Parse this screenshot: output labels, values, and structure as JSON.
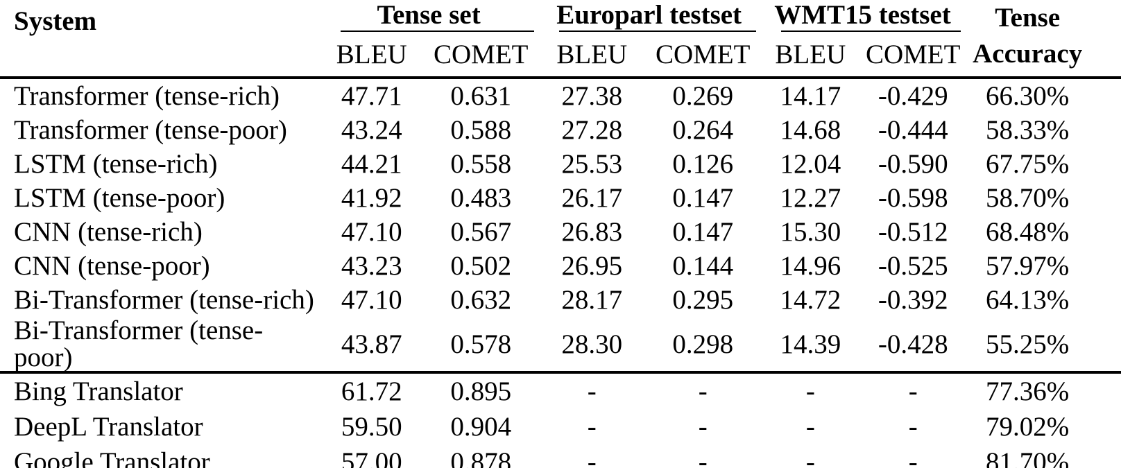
{
  "colors": {
    "text": "#000000",
    "background": "#ffffff",
    "rule": "#000000"
  },
  "table": {
    "header": {
      "system": "System",
      "groups": [
        {
          "label": "Tense set"
        },
        {
          "label": "Europarl testset"
        },
        {
          "label": "WMT15 testset"
        }
      ],
      "subheaders": [
        "BLEU",
        "COMET",
        "BLEU",
        "COMET",
        "BLEU",
        "COMET"
      ],
      "accuracy": {
        "line1": "Tense",
        "line2": "Accuracy"
      }
    },
    "sections": [
      {
        "rows": [
          {
            "system": "Transformer (tense-rich)",
            "values": [
              "47.71",
              "0.631",
              "27.38",
              "0.269",
              "14.17",
              "-0.429",
              "66.30%"
            ]
          },
          {
            "system": "Transformer (tense-poor)",
            "values": [
              "43.24",
              "0.588",
              "27.28",
              "0.264",
              "14.68",
              "-0.444",
              "58.33%"
            ]
          },
          {
            "system": "LSTM (tense-rich)",
            "values": [
              "44.21",
              "0.558",
              "25.53",
              "0.126",
              "12.04",
              "-0.590",
              "67.75%"
            ]
          },
          {
            "system": "LSTM (tense-poor)",
            "values": [
              "41.92",
              "0.483",
              "26.17",
              "0.147",
              "12.27",
              "-0.598",
              "58.70%"
            ]
          },
          {
            "system": "CNN (tense-rich)",
            "values": [
              "47.10",
              "0.567",
              "26.83",
              "0.147",
              "15.30",
              "-0.512",
              "68.48%"
            ]
          },
          {
            "system": "CNN (tense-poor)",
            "values": [
              "43.23",
              "0.502",
              "26.95",
              "0.144",
              "14.96",
              "-0.525",
              "57.97%"
            ]
          },
          {
            "system": "Bi-Transformer (tense-rich)",
            "values": [
              "47.10",
              "0.632",
              "28.17",
              "0.295",
              "14.72",
              "-0.392",
              "64.13%"
            ]
          },
          {
            "system": "Bi-Transformer (tense-poor)",
            "values": [
              "43.87",
              "0.578",
              "28.30",
              "0.298",
              "14.39",
              "-0.428",
              "55.25%"
            ]
          }
        ]
      },
      {
        "rows": [
          {
            "system": "Bing Translator",
            "values": [
              "61.72",
              "0.895",
              "-",
              "-",
              "-",
              "-",
              "77.36%"
            ]
          },
          {
            "system": "DeepL Translator",
            "values": [
              "59.50",
              "0.904",
              "-",
              "-",
              "-",
              "-",
              "79.02%"
            ]
          },
          {
            "system": "Google Translator",
            "values": [
              "57.00",
              "0.878",
              "-",
              "-",
              "-",
              "-",
              "81.70%"
            ]
          }
        ]
      }
    ]
  }
}
